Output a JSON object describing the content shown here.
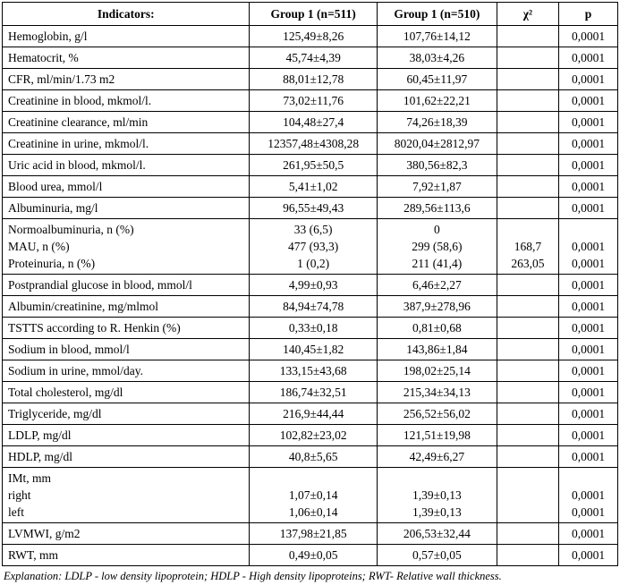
{
  "table": {
    "headers": [
      "Indicators:",
      "Group 1 (n=511)",
      "Group 1 (n=510)",
      "χ²",
      "p"
    ],
    "rows": [
      {
        "indicator": "Hemoglobin, g/l",
        "group1": "125,49±8,26",
        "group2": "107,76±14,12",
        "chi2": "",
        "p": "0,0001"
      },
      {
        "indicator": "Hematocrit, %",
        "group1": "45,74±4,39",
        "group2": "38,03±4,26",
        "chi2": "",
        "p": "0,0001"
      },
      {
        "indicator": "CFR, ml/min/1.73 m2",
        "group1": "88,01±12,78",
        "group2": "60,45±11,97",
        "chi2": "",
        "p": "0,0001"
      },
      {
        "indicator": "Creatinine in blood, mkmol/l.",
        "group1": "73,02±11,76",
        "group2": "101,62±22,21",
        "chi2": "",
        "p": "0,0001"
      },
      {
        "indicator": "Creatinine clearance, ml/min",
        "group1": "104,48±27,4",
        "group2": "74,26±18,39",
        "chi2": "",
        "p": "0,0001"
      },
      {
        "indicator": "Creatinine in urine, mkmol/l.",
        "group1": "12357,48±4308,28",
        "group2": "8020,04±2812,97",
        "chi2": "",
        "p": "0,0001"
      },
      {
        "indicator": "Uric acid in blood, mkmol/l.",
        "group1": "261,95±50,5",
        "group2": "380,56±82,3",
        "chi2": "",
        "p": "0,0001"
      },
      {
        "indicator": "Blood urea, mmol/l",
        "group1": "5,41±1,02",
        "group2": "7,92±1,87",
        "chi2": "",
        "p": "0,0001"
      },
      {
        "indicator": "Albuminuria, mg/l",
        "group1": "96,55±49,43",
        "group2": "289,56±113,6",
        "chi2": "",
        "p": "0,0001"
      },
      {
        "indicator": [
          "Normoalbuminuria, n (%)",
          "MAU, n (%)",
          "Proteinuria, n (%)"
        ],
        "group1": [
          "33 (6,5)",
          "477 (93,3)",
          "1 (0,2)"
        ],
        "group2": [
          "0",
          "299 (58,6)",
          "211 (41,4)"
        ],
        "chi2": [
          "",
          "168,7",
          "263,05"
        ],
        "p": [
          "",
          "0,0001",
          "0,0001"
        ]
      },
      {
        "indicator": "Postprandial glucose in blood, mmol/l",
        "group1": "4,99±0,93",
        "group2": "6,46±2,27",
        "chi2": "",
        "p": "0,0001"
      },
      {
        "indicator": "Albumin/creatinine, mg/mlmol",
        "group1": "84,94±74,78",
        "group2": "387,9±278,96",
        "chi2": "",
        "p": "0,0001"
      },
      {
        "indicator": "TSTTS according to R. Henkin (%)",
        "group1": "0,33±0,18",
        "group2": "0,81±0,68",
        "chi2": "",
        "p": "0,0001"
      },
      {
        "indicator": "Sodium in blood, mmol/l",
        "group1": "140,45±1,82",
        "group2": "143,86±1,84",
        "chi2": "",
        "p": "0,0001"
      },
      {
        "indicator": "Sodium in urine, mmol/day.",
        "group1": "133,15±43,68",
        "group2": "198,02±25,14",
        "chi2": "",
        "p": "0,0001"
      },
      {
        "indicator": "Total cholesterol, mg/dl",
        "group1": "186,74±32,51",
        "group2": "215,34±34,13",
        "chi2": "",
        "p": "0,0001"
      },
      {
        "indicator": "Triglyceride, mg/dl",
        "group1": "216,9±44,44",
        "group2": "256,52±56,02",
        "chi2": "",
        "p": "0,0001"
      },
      {
        "indicator": "LDLP, mg/dl",
        "group1": "102,82±23,02",
        "group2": "121,51±19,98",
        "chi2": "",
        "p": "0,0001"
      },
      {
        "indicator": "HDLP, mg/dl",
        "group1": "40,8±5,65",
        "group2": "42,49±6,27",
        "chi2": "",
        "p": "0,0001"
      },
      {
        "indicator": [
          "IMt, mm",
          "right",
          "left"
        ],
        "group1": [
          "",
          "1,07±0,14",
          "1,06±0,14"
        ],
        "group2": [
          "",
          "1,39±0,13",
          "1,39±0,13"
        ],
        "chi2": [
          "",
          "",
          ""
        ],
        "p": [
          "",
          "0,0001",
          "0,0001"
        ]
      },
      {
        "indicator": "LVMWI, g/m2",
        "group1": "137,98±21,85",
        "group2": "206,53±32,44",
        "chi2": "",
        "p": "0,0001"
      },
      {
        "indicator": "RWT, mm",
        "group1": "0,49±0,05",
        "group2": "0,57±0,05",
        "chi2": "",
        "p": "0,0001"
      }
    ]
  },
  "footnote": "Explanation: LDLP - low density lipoprotein; HDLP - High density lipoproteins; RWT- Relative wall thickness."
}
